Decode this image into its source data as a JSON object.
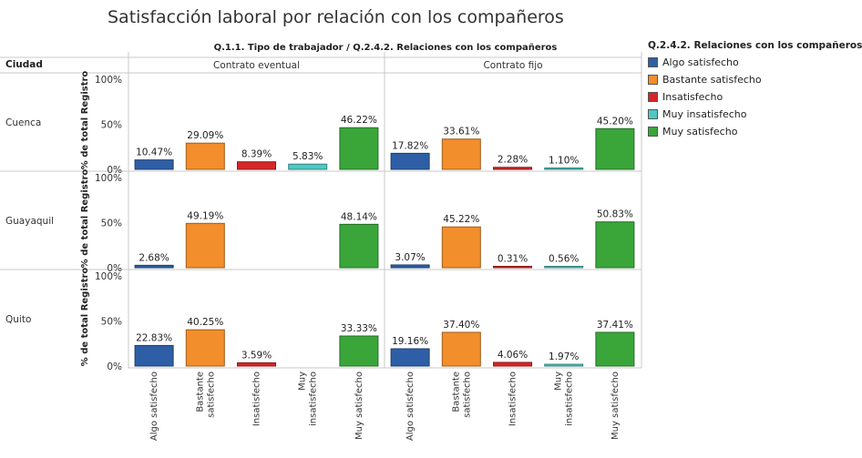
{
  "title": "Satisfacción laboral por relación con los compañeros",
  "legend": {
    "title": "Q.2.4.2. Relaciones con los compañeros",
    "items": [
      {
        "label": "Algo satisfecho",
        "color": "#2e5fa6"
      },
      {
        "label": "Bastante satisfecho",
        "color": "#f28e2b"
      },
      {
        "label": "Insatisfecho",
        "color": "#d62728"
      },
      {
        "label": "Muy insatisfecho",
        "color": "#4fc8c4"
      },
      {
        "label": "Muy satisfecho",
        "color": "#3aa63a"
      }
    ]
  },
  "chart_data": {
    "type": "bar",
    "column_header": "Q.1.1. Tipo de trabajador  /  Q.2.4.2. Relaciones con los compañeros",
    "row_header": "Ciudad",
    "columns": [
      "Contrato eventual",
      "Contrato fijo"
    ],
    "rows": [
      "Cuenca",
      "Guayaquil",
      "Quito"
    ],
    "categories": [
      "Algo satisfecho",
      "Bastante satisfecho",
      "Insatisfecho",
      "Muy insatisfecho",
      "Muy satisfecho"
    ],
    "category_tick_labels": [
      [
        "Algo satisfecho"
      ],
      [
        "Bastante",
        "satisfecho"
      ],
      [
        "Insatisfecho"
      ],
      [
        "Muy",
        "insatisfecho"
      ],
      [
        "Muy satisfecho"
      ]
    ],
    "ylabel": "% de total Registro",
    "yticks": [
      "0%",
      "50%",
      "100%"
    ],
    "ylim": [
      0,
      100
    ],
    "panels": [
      {
        "row": "Cuenca",
        "column": "Contrato eventual",
        "values": [
          10.47,
          29.09,
          8.39,
          5.83,
          46.22
        ],
        "labels": [
          "10.47%",
          "29.09%",
          "8.39%",
          "5.83%",
          "46.22%"
        ]
      },
      {
        "row": "Cuenca",
        "column": "Contrato fijo",
        "values": [
          17.82,
          33.61,
          2.28,
          1.1,
          45.2
        ],
        "labels": [
          "17.82%",
          "33.61%",
          "2.28%",
          "1.10%",
          "45.20%"
        ]
      },
      {
        "row": "Guayaquil",
        "column": "Contrato eventual",
        "values": [
          2.68,
          49.19,
          null,
          null,
          48.14
        ],
        "labels": [
          "2.68%",
          "49.19%",
          "",
          "",
          "48.14%"
        ]
      },
      {
        "row": "Guayaquil",
        "column": "Contrato fijo",
        "values": [
          3.07,
          45.22,
          0.31,
          0.56,
          50.83
        ],
        "labels": [
          "3.07%",
          "45.22%",
          "0.31%",
          "0.56%",
          "50.83%"
        ]
      },
      {
        "row": "Quito",
        "column": "Contrato eventual",
        "values": [
          22.83,
          40.25,
          3.59,
          null,
          33.33
        ],
        "labels": [
          "22.83%",
          "40.25%",
          "3.59%",
          "",
          "33.33%"
        ]
      },
      {
        "row": "Quito",
        "column": "Contrato fijo",
        "values": [
          19.16,
          37.4,
          4.06,
          1.97,
          37.41
        ],
        "labels": [
          "19.16%",
          "37.40%",
          "4.06%",
          "1.97%",
          "37.41%"
        ]
      }
    ]
  }
}
